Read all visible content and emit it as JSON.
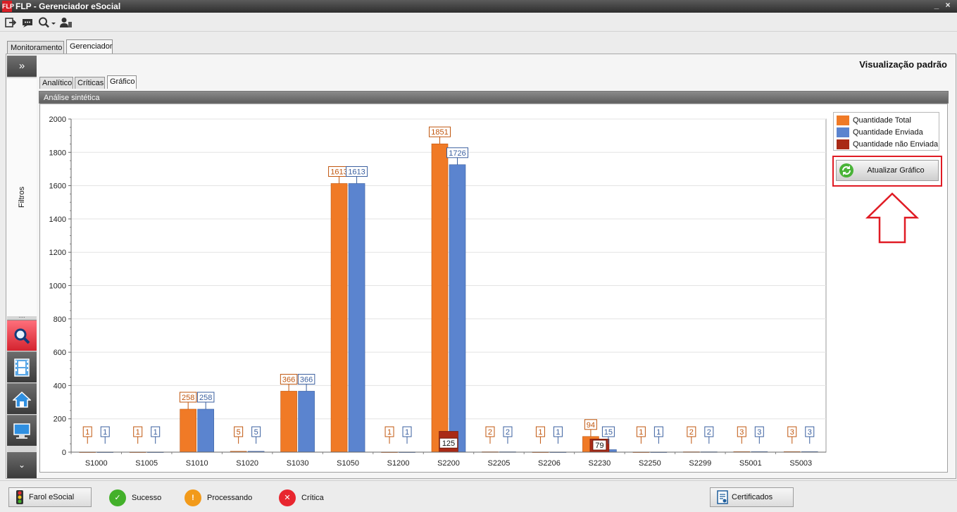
{
  "window": {
    "app_icon": "FLP",
    "title": "FLP - Gerenciador eSocial",
    "minimize_glyph": "_",
    "close_glyph": "×"
  },
  "toolbar": {
    "icons": [
      "exit-icon",
      "message-icon",
      "search-icon",
      "user-icon"
    ]
  },
  "main_tabs": [
    "Monitoramento",
    "Gerenciador"
  ],
  "main_tab_selected": "Gerenciador",
  "left_panel": {
    "expand_label": "»",
    "filters_label": "Filtros",
    "grip": "....",
    "collapse_label": "⌄",
    "buttons": [
      "search-icon",
      "film-icon",
      "home-icon",
      "monitor-icon"
    ]
  },
  "view_title": "Visualização padrão",
  "sub_tabs": [
    "Analítico",
    "Críticas",
    "Gráfico"
  ],
  "sub_tab_selected": "Gráfico",
  "section_header": "Análise sintética",
  "legend": [
    {
      "label": "Quantidade Total",
      "color": "#f07a26"
    },
    {
      "label": "Quantidade Enviada",
      "color": "#5b84cf"
    },
    {
      "label": "Quantidade não Enviada",
      "color": "#a92a16"
    }
  ],
  "update_button": "Atualizar Gráfico",
  "chart_data": {
    "type": "bar",
    "categories": [
      "S1000",
      "S1005",
      "S1010",
      "S1020",
      "S1030",
      "S1050",
      "S1200",
      "S2200",
      "S2205",
      "S2206",
      "S2230",
      "S2250",
      "S2299",
      "S5001",
      "S5003"
    ],
    "series": [
      {
        "name": "Quantidade Total",
        "color": "#f07a26",
        "values": [
          1,
          1,
          258,
          5,
          366,
          1613,
          1,
          1851,
          2,
          1,
          94,
          1,
          2,
          3,
          3
        ]
      },
      {
        "name": "Quantidade Enviada",
        "color": "#5b84cf",
        "values": [
          1,
          1,
          258,
          5,
          366,
          1613,
          1,
          1726,
          2,
          1,
          15,
          1,
          2,
          3,
          3
        ]
      },
      {
        "name": "Quantidade não Enviada",
        "color": "#a92a16",
        "values": [
          0,
          0,
          0,
          0,
          0,
          0,
          0,
          125,
          0,
          0,
          79,
          0,
          0,
          0,
          0
        ]
      }
    ],
    "data_labels": {
      "Quantidade Total": [
        "1",
        "1",
        "258",
        "5",
        "366",
        "1613",
        "1",
        "1851",
        "2",
        "1",
        "94",
        "1",
        "2",
        "3",
        "3"
      ],
      "Quantidade Enviada": [
        "1",
        "1",
        "258",
        "5",
        "366",
        "1613",
        "1",
        "1726",
        "2",
        "1",
        "15",
        "1",
        "2",
        "3",
        "3"
      ],
      "Quantidade não Enviada": [
        "",
        "",
        "",
        "",
        "",
        "",
        "",
        "125",
        "",
        "",
        "79",
        "",
        "",
        "",
        ""
      ]
    },
    "yticks": [
      "0",
      "200",
      "400",
      "600",
      "800",
      "1000",
      "1200",
      "1400",
      "1600",
      "1800",
      "2000"
    ],
    "ylim": [
      0,
      2000
    ],
    "grid": true,
    "legend_position": "top-right",
    "xlabel": "",
    "ylabel": ""
  },
  "status_bar": {
    "farol_label": "Farol eSocial",
    "items": [
      {
        "label": "Sucesso",
        "color": "#43b02a",
        "glyph": "✓"
      },
      {
        "label": "Processando",
        "color": "#f29a1a",
        "glyph": "!"
      },
      {
        "label": "Crítica",
        "color": "#e8262f",
        "glyph": "✕"
      }
    ],
    "certificados_label": "Certificados"
  }
}
